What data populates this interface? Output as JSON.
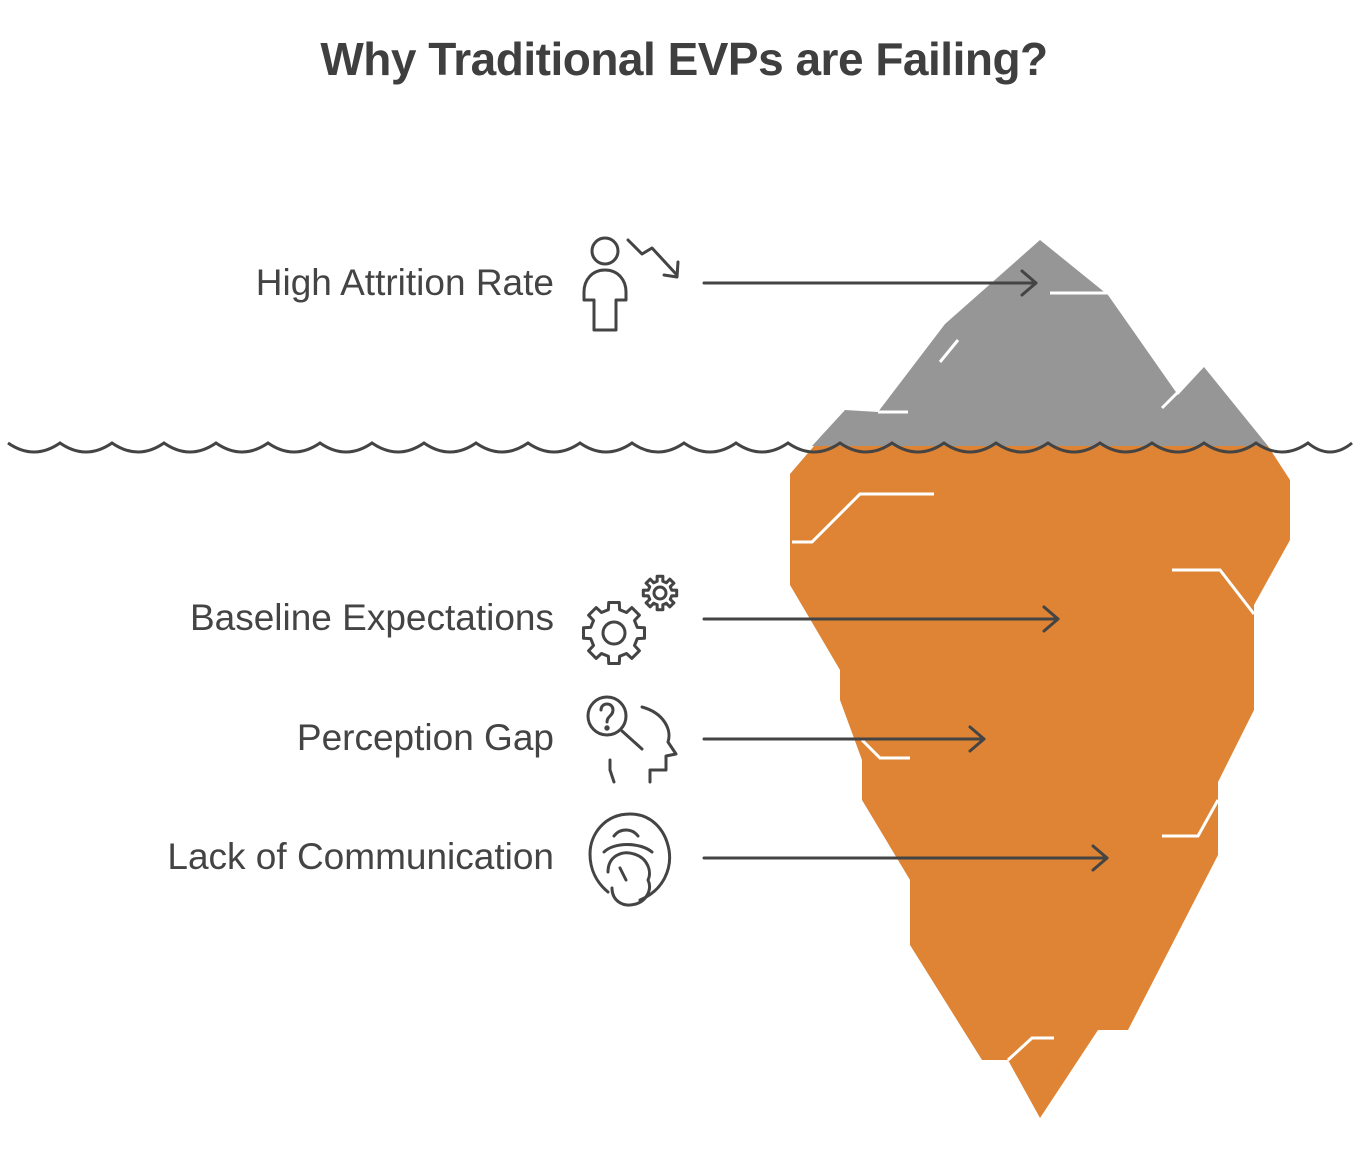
{
  "title": "Why Traditional EVPs are Failing?",
  "colors": {
    "above_water": "#969696",
    "below_water": "#de8434",
    "line": "#444444",
    "text": "#444444"
  },
  "items": [
    {
      "label": "High Attrition Rate",
      "icon": "person-decline-icon",
      "zone": "above-water"
    },
    {
      "label": "Baseline Expectations",
      "icon": "gears-icon",
      "zone": "below-water"
    },
    {
      "label": "Perception Gap",
      "icon": "head-question-icon",
      "zone": "below-water"
    },
    {
      "label": "Lack of Communication",
      "icon": "silenced-face-icon",
      "zone": "below-water"
    }
  ]
}
